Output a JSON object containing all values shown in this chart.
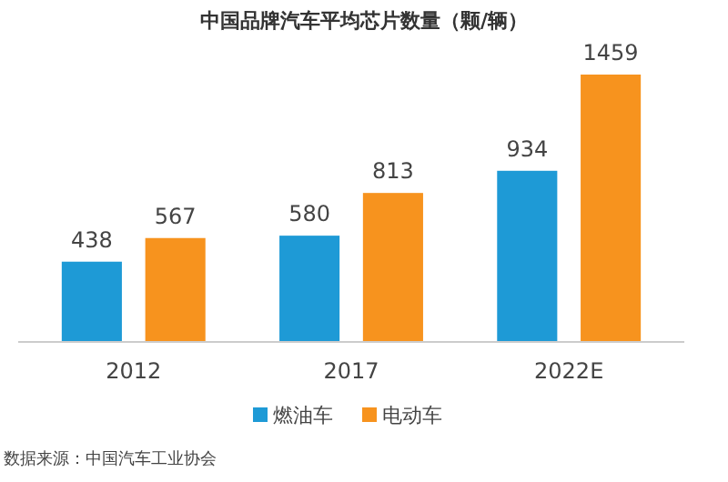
{
  "chart_data": {
    "type": "bar",
    "title": "中国品牌汽车平均芯片数量（颗/辆）",
    "categories": [
      "2012",
      "2017",
      "2022E"
    ],
    "series": [
      {
        "name": "燃油车",
        "color": "#1e9ad6",
        "values": [
          438,
          580,
          934
        ]
      },
      {
        "name": "电动车",
        "color": "#f7931e",
        "values": [
          567,
          813,
          1459
        ]
      }
    ],
    "data_labels": true,
    "legend": "bottom",
    "grid": false,
    "annotations": [
      "数据来源：中国汽车工业协会"
    ]
  }
}
